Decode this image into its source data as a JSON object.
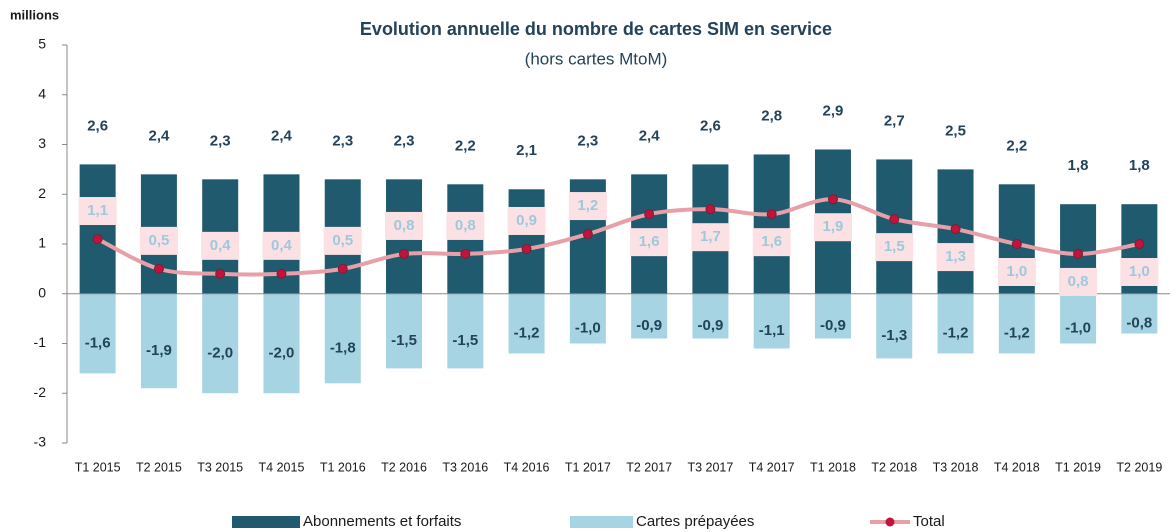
{
  "chart_data": {
    "type": "bar",
    "title": "Evolution annuelle du nombre de cartes SIM en service",
    "subtitle": "(hors cartes MtoM)",
    "y_axis_label": "millions",
    "categories": [
      "T1 2015",
      "T2 2015",
      "T3 2015",
      "T4 2015",
      "T1 2016",
      "T2 2016",
      "T3 2016",
      "T4 2016",
      "T1 2017",
      "T2 2017",
      "T3 2017",
      "T4 2017",
      "T1 2018",
      "T2 2018",
      "T3 2018",
      "T4 2018",
      "T1 2019",
      "T2 2019"
    ],
    "series": [
      {
        "name": "Abonnements et forfaits",
        "type": "bar",
        "color": "#1f5a6e",
        "values": [
          2.6,
          2.4,
          2.3,
          2.4,
          2.3,
          2.3,
          2.2,
          2.1,
          2.3,
          2.4,
          2.6,
          2.8,
          2.9,
          2.7,
          2.5,
          2.2,
          1.8,
          1.8
        ],
        "value_labels": [
          "2,6",
          "2,4",
          "2,3",
          "2,4",
          "2,3",
          "2,3",
          "2,2",
          "2,1",
          "2,3",
          "2,4",
          "2,6",
          "2,8",
          "2,9",
          "2,7",
          "2,5",
          "2,2",
          "1,8",
          "1,8"
        ]
      },
      {
        "name": "Cartes prépayées",
        "type": "bar",
        "color": "#a6d4e2",
        "values": [
          -1.6,
          -1.9,
          -2.0,
          -2.0,
          -1.8,
          -1.5,
          -1.5,
          -1.2,
          -1.0,
          -0.9,
          -0.9,
          -1.1,
          -0.9,
          -1.3,
          -1.2,
          -1.2,
          -1.0,
          -0.8
        ],
        "value_labels": [
          "-1,6",
          "-1,9",
          "-2,0",
          "-2,0",
          "-1,8",
          "-1,5",
          "-1,5",
          "-1,2",
          "-1,0",
          "-0,9",
          "-0,9",
          "-1,1",
          "-0,9",
          "-1,3",
          "-1,2",
          "-1,2",
          "-1,0",
          "-0,8"
        ]
      },
      {
        "name": "Total",
        "type": "line",
        "color": "#e8a0a8",
        "marker_color": "#c0143c",
        "values": [
          1.1,
          0.5,
          0.4,
          0.4,
          0.5,
          0.8,
          0.8,
          0.9,
          1.2,
          1.6,
          1.7,
          1.6,
          1.9,
          1.5,
          1.3,
          1.0,
          0.8,
          1.0
        ],
        "value_labels": [
          "1,1",
          "0,5",
          "0,4",
          "0,4",
          "0,5",
          "0,8",
          "0,8",
          "0,9",
          "1,2",
          "1,6",
          "1,7",
          "1,6",
          "1,9",
          "1,5",
          "1,3",
          "1,0",
          "0,8",
          "1,0"
        ]
      }
    ],
    "ylim": [
      -3,
      5
    ],
    "yticks": [
      -3,
      -2,
      -1,
      0,
      1,
      2,
      3,
      4,
      5
    ],
    "legend": "bottom"
  }
}
